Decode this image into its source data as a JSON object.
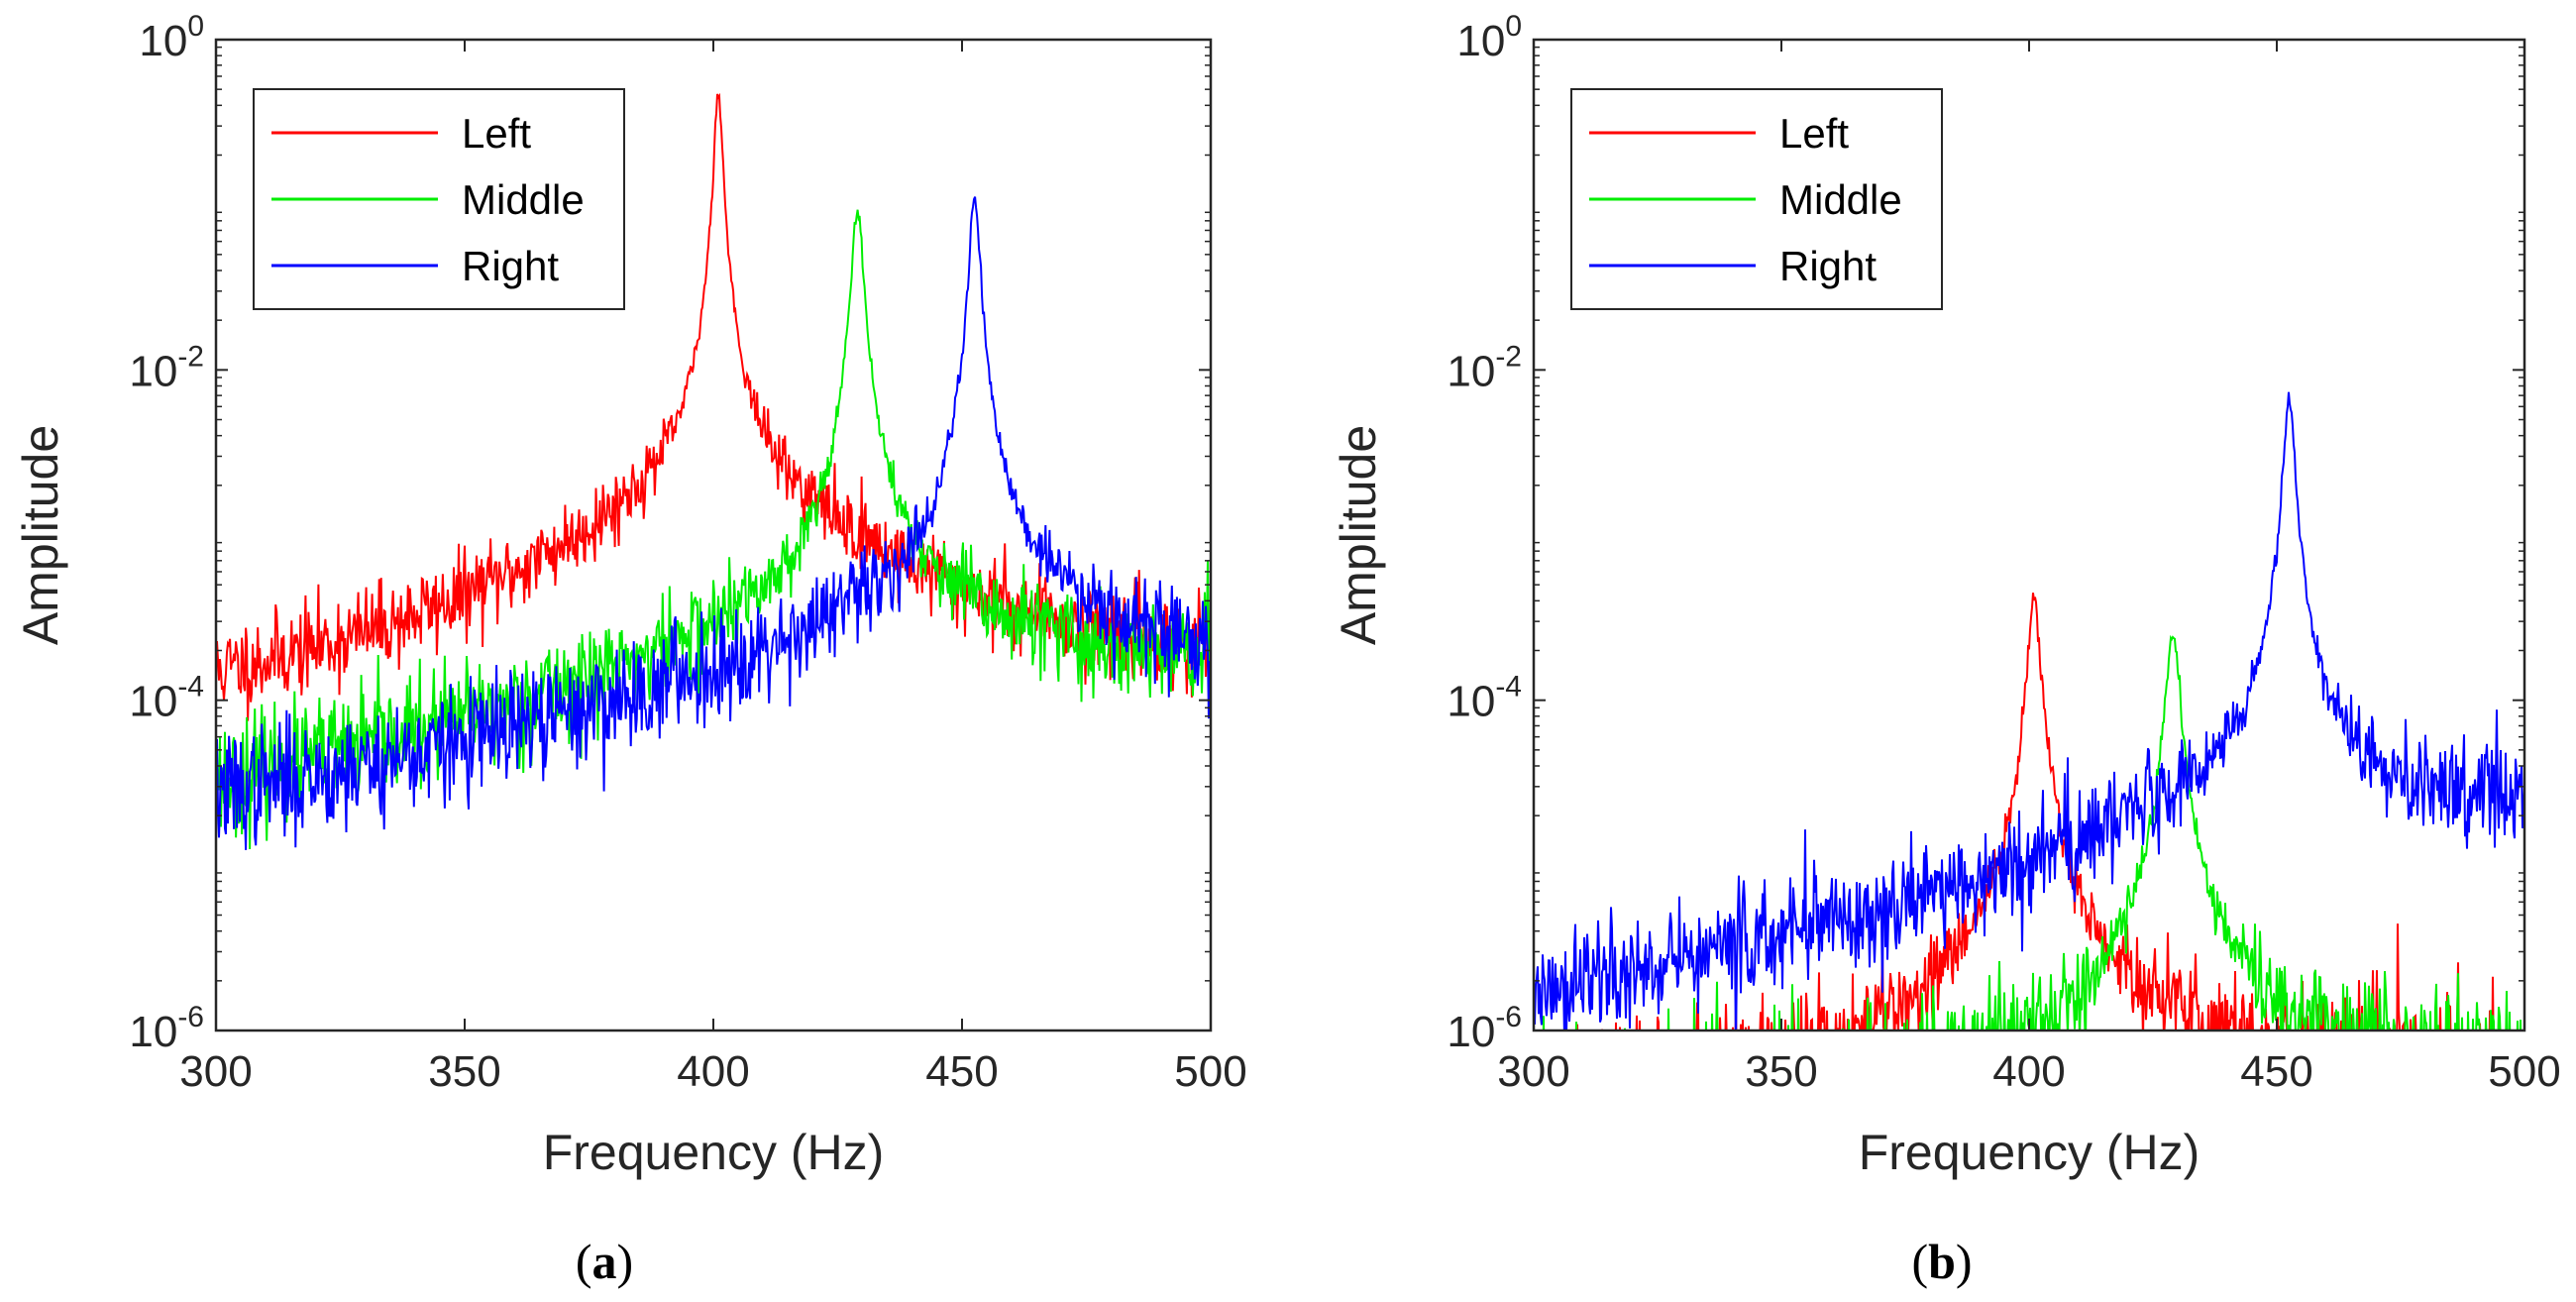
{
  "figure": {
    "captions": [
      "(a)",
      "(b)"
    ]
  },
  "chart_data": [
    {
      "id": "a",
      "type": "line",
      "caption_letter": "a",
      "title": "",
      "xlabel": "Frequency (Hz)",
      "ylabel": "Amplitude",
      "xlim": [
        300,
        500
      ],
      "ylim": [
        1e-06,
        1
      ],
      "yscale": "log",
      "xticks": [
        300,
        350,
        400,
        450,
        500
      ],
      "yticks": [
        {
          "base": "10",
          "exp": "-6",
          "value": 1e-06
        },
        {
          "base": "10",
          "exp": "-4",
          "value": 0.0001
        },
        {
          "base": "10",
          "exp": "-2",
          "value": 0.01
        },
        {
          "base": "10",
          "exp": "0",
          "value": 1
        }
      ],
      "legend_position": "top-left",
      "series": [
        {
          "name": "Left",
          "color": "#ff0000",
          "f0": 401,
          "peak": 0.5,
          "gamma": 0.7,
          "floor_low": 4e-05,
          "floor_high": 0.0001,
          "slope": 25,
          "noise": 0.16,
          "seed": 11
        },
        {
          "name": "Middle",
          "color": "#00ee00",
          "f0": 429,
          "peak": 0.09,
          "gamma": 1.0,
          "floor_low": 4e-06,
          "floor_high": 0.0001,
          "slope": 40,
          "noise": 0.2,
          "seed": 23
        },
        {
          "name": "Right",
          "color": "#0000ff",
          "f0": 452.5,
          "peak": 0.11,
          "gamma": 0.9,
          "floor_low": 2e-06,
          "floor_high": 3e-05,
          "slope": 40,
          "noise": 0.2,
          "seed": 37
        }
      ]
    },
    {
      "id": "b",
      "type": "line",
      "caption_letter": "b",
      "title": "",
      "xlabel": "Frequency (Hz)",
      "ylabel": "Amplitude",
      "xlim": [
        300,
        500
      ],
      "ylim": [
        1e-06,
        1
      ],
      "yscale": "log",
      "xticks": [
        300,
        350,
        400,
        450,
        500
      ],
      "yticks": [
        {
          "base": "10",
          "exp": "-6",
          "value": 1e-06
        },
        {
          "base": "10",
          "exp": "-4",
          "value": 0.0001
        },
        {
          "base": "10",
          "exp": "-2",
          "value": 0.01
        },
        {
          "base": "10",
          "exp": "0",
          "value": 1
        }
      ],
      "legend_position": "top-left",
      "series": [
        {
          "name": "Left",
          "color": "#ff0000",
          "f0": 401,
          "peak": 0.0004,
          "gamma": 1.1,
          "floor_low": 3e-07,
          "floor_high": 5e-07,
          "slope": 20,
          "noise": 0.25,
          "seed": 51
        },
        {
          "name": "Middle",
          "color": "#00ee00",
          "f0": 429,
          "peak": 0.00025,
          "gamma": 1.2,
          "floor_low": 3e-07,
          "floor_high": 5e-07,
          "slope": 20,
          "noise": 0.25,
          "seed": 63
        },
        {
          "name": "Right",
          "color": "#0000ff",
          "f0": 452.5,
          "peak": 0.007,
          "gamma": 0.9,
          "floor_low": 4e-07,
          "floor_high": 1.5e-05,
          "slope": 35,
          "noise": 0.2,
          "seed": 77
        }
      ]
    }
  ]
}
